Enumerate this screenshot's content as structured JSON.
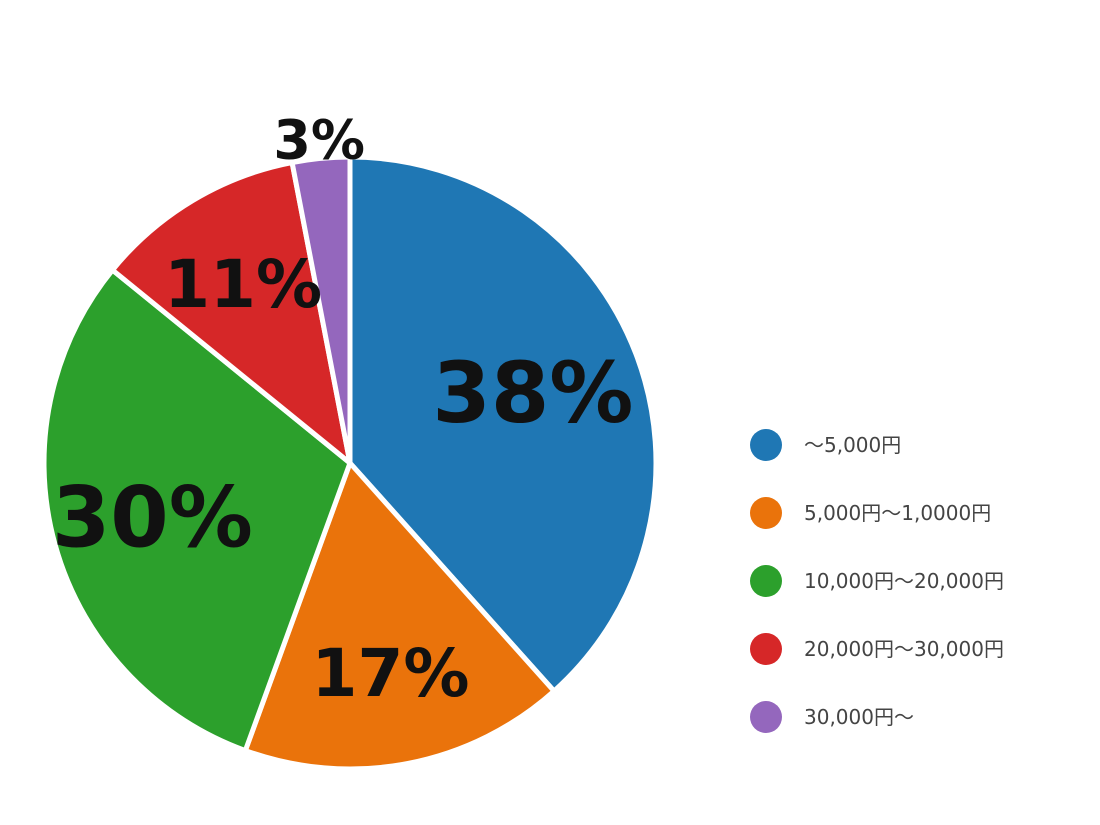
{
  "chart_data": {
    "type": "pie",
    "categories": [
      "〜5,000円",
      "5,000円〜1,0000円",
      "10,000円〜20,000円",
      "20,000円〜30,000円",
      "30,000円〜"
    ],
    "values": [
      38,
      17,
      30,
      11,
      3
    ],
    "labels": [
      "38%",
      "17%",
      "30%",
      "11%",
      "3%"
    ],
    "colors": [
      "#1f77b4",
      "#ea730b",
      "#2ca02c",
      "#d62728",
      "#9467bd"
    ],
    "legend_position": "right",
    "start_angle_deg": 0,
    "direction": "clockwise",
    "title": ""
  }
}
